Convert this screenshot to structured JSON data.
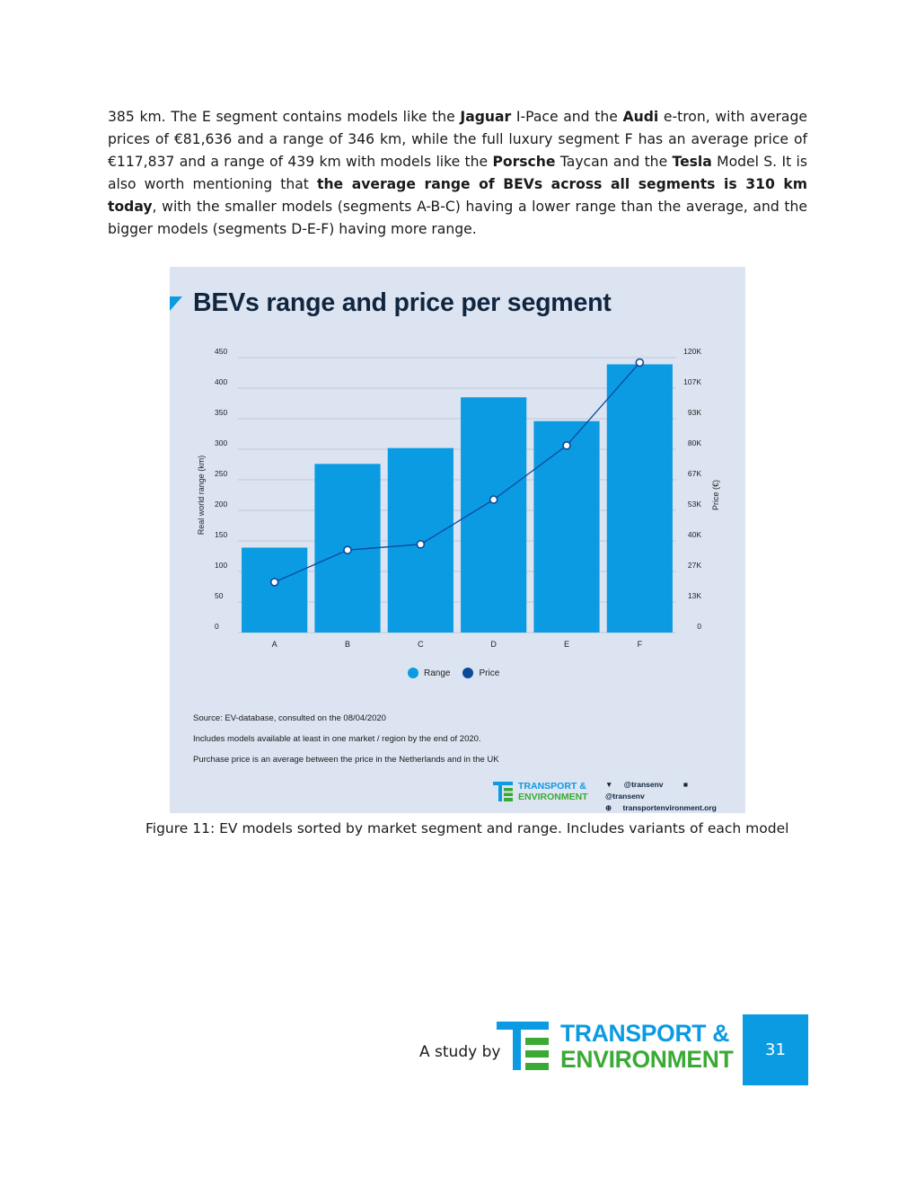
{
  "paragraph": {
    "s1": "385 km. The E segment contains models like the ",
    "b1": "Jaguar",
    "s2": " I-Pace and the ",
    "b2": "Audi",
    "s3": " e-tron, with average prices of €81,636 and a range of 346 km, while the full luxury segment F has an average price of €117,837 and a range of 439 km with models like the ",
    "b3": "Porsche",
    "s4": " Taycan and the ",
    "b4": "Tesla",
    "s5": " Model S. It is also worth mentioning that ",
    "b5": "the average range of BEVs across all segments is 310 km today",
    "s6": ", with the smaller models (segments A-B-C) having a lower range than the average, and the bigger models (segments D-E-F) having more range."
  },
  "figure": {
    "title": "BEVs range and price per segment",
    "legend": {
      "range": "Range",
      "price": "Price"
    },
    "notes": {
      "source": "Source:  EV-database,  consulted on the 08/04/2020",
      "line2": "Includes models available at least in one market / region by the end of 2020.",
      "line3": "Purchase price is an average between the price in the Netherlands and in the UK"
    },
    "logo": {
      "line1": "TRANSPORT &",
      "line2": "ENVIRONMENT"
    },
    "social": {
      "twitter": "@transenv",
      "facebook": "@transenv",
      "web": "transportenvironment.org"
    }
  },
  "chart_data": {
    "type": "bar",
    "title": "BEVs range and price per segment",
    "categories": [
      "A",
      "B",
      "C",
      "D",
      "E",
      "F"
    ],
    "series": [
      {
        "name": "Range",
        "type": "bar",
        "axis": "left",
        "values": [
          139,
          276,
          302,
          385,
          346,
          439
        ]
      },
      {
        "name": "Price",
        "type": "line",
        "axis": "right",
        "values": [
          22000,
          36000,
          38500,
          58000,
          81636,
          117837
        ]
      }
    ],
    "ylabel": "Real world range (km)",
    "y2label": "Price (€)",
    "ylim": [
      0,
      450
    ],
    "y2lim": [
      0,
      120000
    ],
    "yticks": [
      "0",
      "50",
      "100",
      "150",
      "200",
      "250",
      "300",
      "350",
      "400",
      "450"
    ],
    "y2ticks": [
      "0",
      "13K",
      "27K",
      "40K",
      "53K",
      "67K",
      "80K",
      "93K",
      "107K",
      "120K"
    ],
    "grid": true,
    "legend_position": "bottom",
    "colors": {
      "range": "#0a9be2",
      "price": "#0c4a9a"
    }
  },
  "caption": "Figure 11: EV models sorted by market segment and range. Includes variants of each model",
  "footer": {
    "study_by": "A study by",
    "org_line1": "TRANSPORT &",
    "org_line2": "ENVIRONMENT",
    "page_number": "31"
  }
}
